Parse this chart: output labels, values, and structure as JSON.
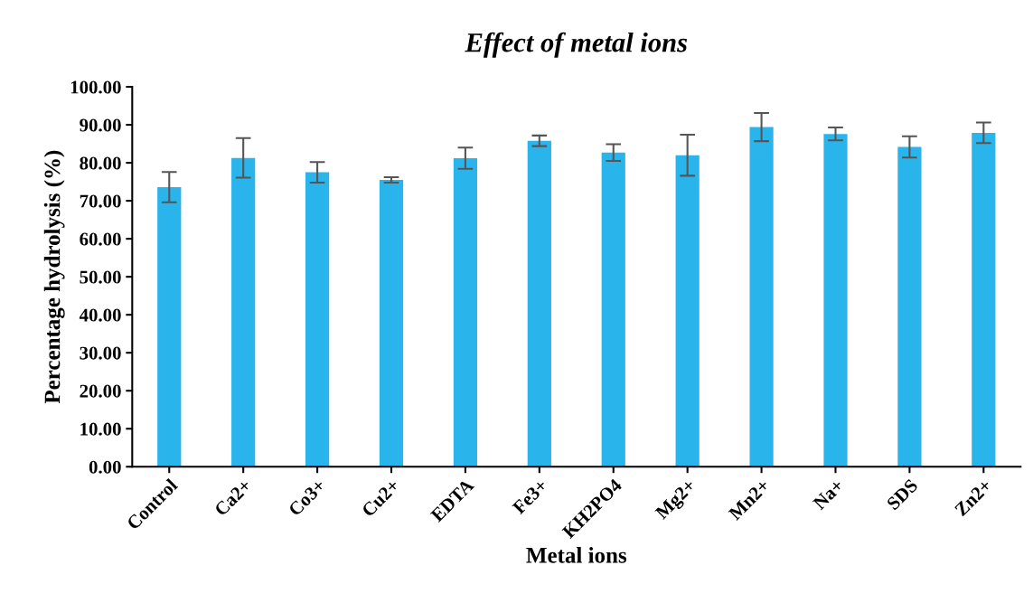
{
  "chart_data": {
    "type": "bar",
    "title": "Effect of metal ions",
    "xlabel": "Metal ions",
    "ylabel": "Percentage hydrolysis (%)",
    "categories": [
      "Control",
      "Ca2+",
      "Co3+",
      "Cu2+",
      "EDTA",
      "Fe3+",
      "KH2PO4",
      "Mg2+",
      "Mn2+",
      "Na+",
      "SDS",
      "Zn2+"
    ],
    "values": [
      73.6,
      81.3,
      77.5,
      75.5,
      81.2,
      85.8,
      82.7,
      82.0,
      89.4,
      87.6,
      84.2,
      87.9
    ],
    "errors": [
      4.0,
      5.2,
      2.7,
      0.7,
      2.8,
      1.4,
      2.2,
      5.4,
      3.7,
      1.7,
      2.8,
      2.7
    ],
    "color": "#2ab4ec",
    "ylim": [
      0,
      100
    ],
    "yticks": [
      {
        "value": 0,
        "label": "0.00"
      },
      {
        "value": 10,
        "label": "10.00"
      },
      {
        "value": 20,
        "label": "20.00"
      },
      {
        "value": 30,
        "label": "30.00"
      },
      {
        "value": 40,
        "label": "40.00"
      },
      {
        "value": 50,
        "label": "50.00"
      },
      {
        "value": 60,
        "label": "60.00"
      },
      {
        "value": 70,
        "label": "70.00"
      },
      {
        "value": 80,
        "label": "80.00"
      },
      {
        "value": 90,
        "label": "90.00"
      },
      {
        "value": 100,
        "label": "100.00"
      }
    ],
    "grid": false
  }
}
